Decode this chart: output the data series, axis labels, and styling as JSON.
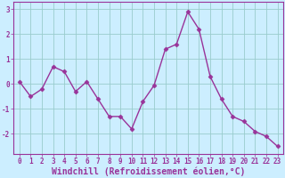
{
  "x": [
    0,
    1,
    2,
    3,
    4,
    5,
    6,
    7,
    8,
    9,
    10,
    11,
    12,
    13,
    14,
    15,
    16,
    17,
    18,
    19,
    20,
    21,
    22,
    23
  ],
  "y": [
    0.1,
    -0.5,
    -0.2,
    0.7,
    0.5,
    -0.3,
    0.1,
    -0.6,
    -1.3,
    -1.3,
    -1.8,
    -0.7,
    -0.05,
    1.4,
    1.6,
    2.9,
    2.2,
    0.3,
    -0.6,
    -1.3,
    -1.5,
    -1.9,
    -2.1,
    -2.5
  ],
  "line_color": "#993399",
  "marker": "D",
  "marker_size": 2.5,
  "bg_color": "#cceeff",
  "grid_color": "#99cccc",
  "xlabel": "Windchill (Refroidissement éolien,°C)",
  "ylim": [
    -2.8,
    3.3
  ],
  "xlim": [
    -0.5,
    23.5
  ],
  "yticks": [
    -2,
    -1,
    0,
    1,
    2,
    3
  ],
  "xticks": [
    0,
    1,
    2,
    3,
    4,
    5,
    6,
    7,
    8,
    9,
    10,
    11,
    12,
    13,
    14,
    15,
    16,
    17,
    18,
    19,
    20,
    21,
    22,
    23
  ],
  "xtick_labels": [
    "0",
    "1",
    "2",
    "3",
    "4",
    "5",
    "6",
    "7",
    "8",
    "9",
    "10",
    "11",
    "12",
    "13",
    "14",
    "15",
    "16",
    "17",
    "18",
    "19",
    "20",
    "21",
    "22",
    "23"
  ],
  "tick_fontsize": 5.5,
  "xlabel_fontsize": 7.0,
  "label_color": "#993399",
  "spine_color": "#993399",
  "linewidth": 1.0
}
